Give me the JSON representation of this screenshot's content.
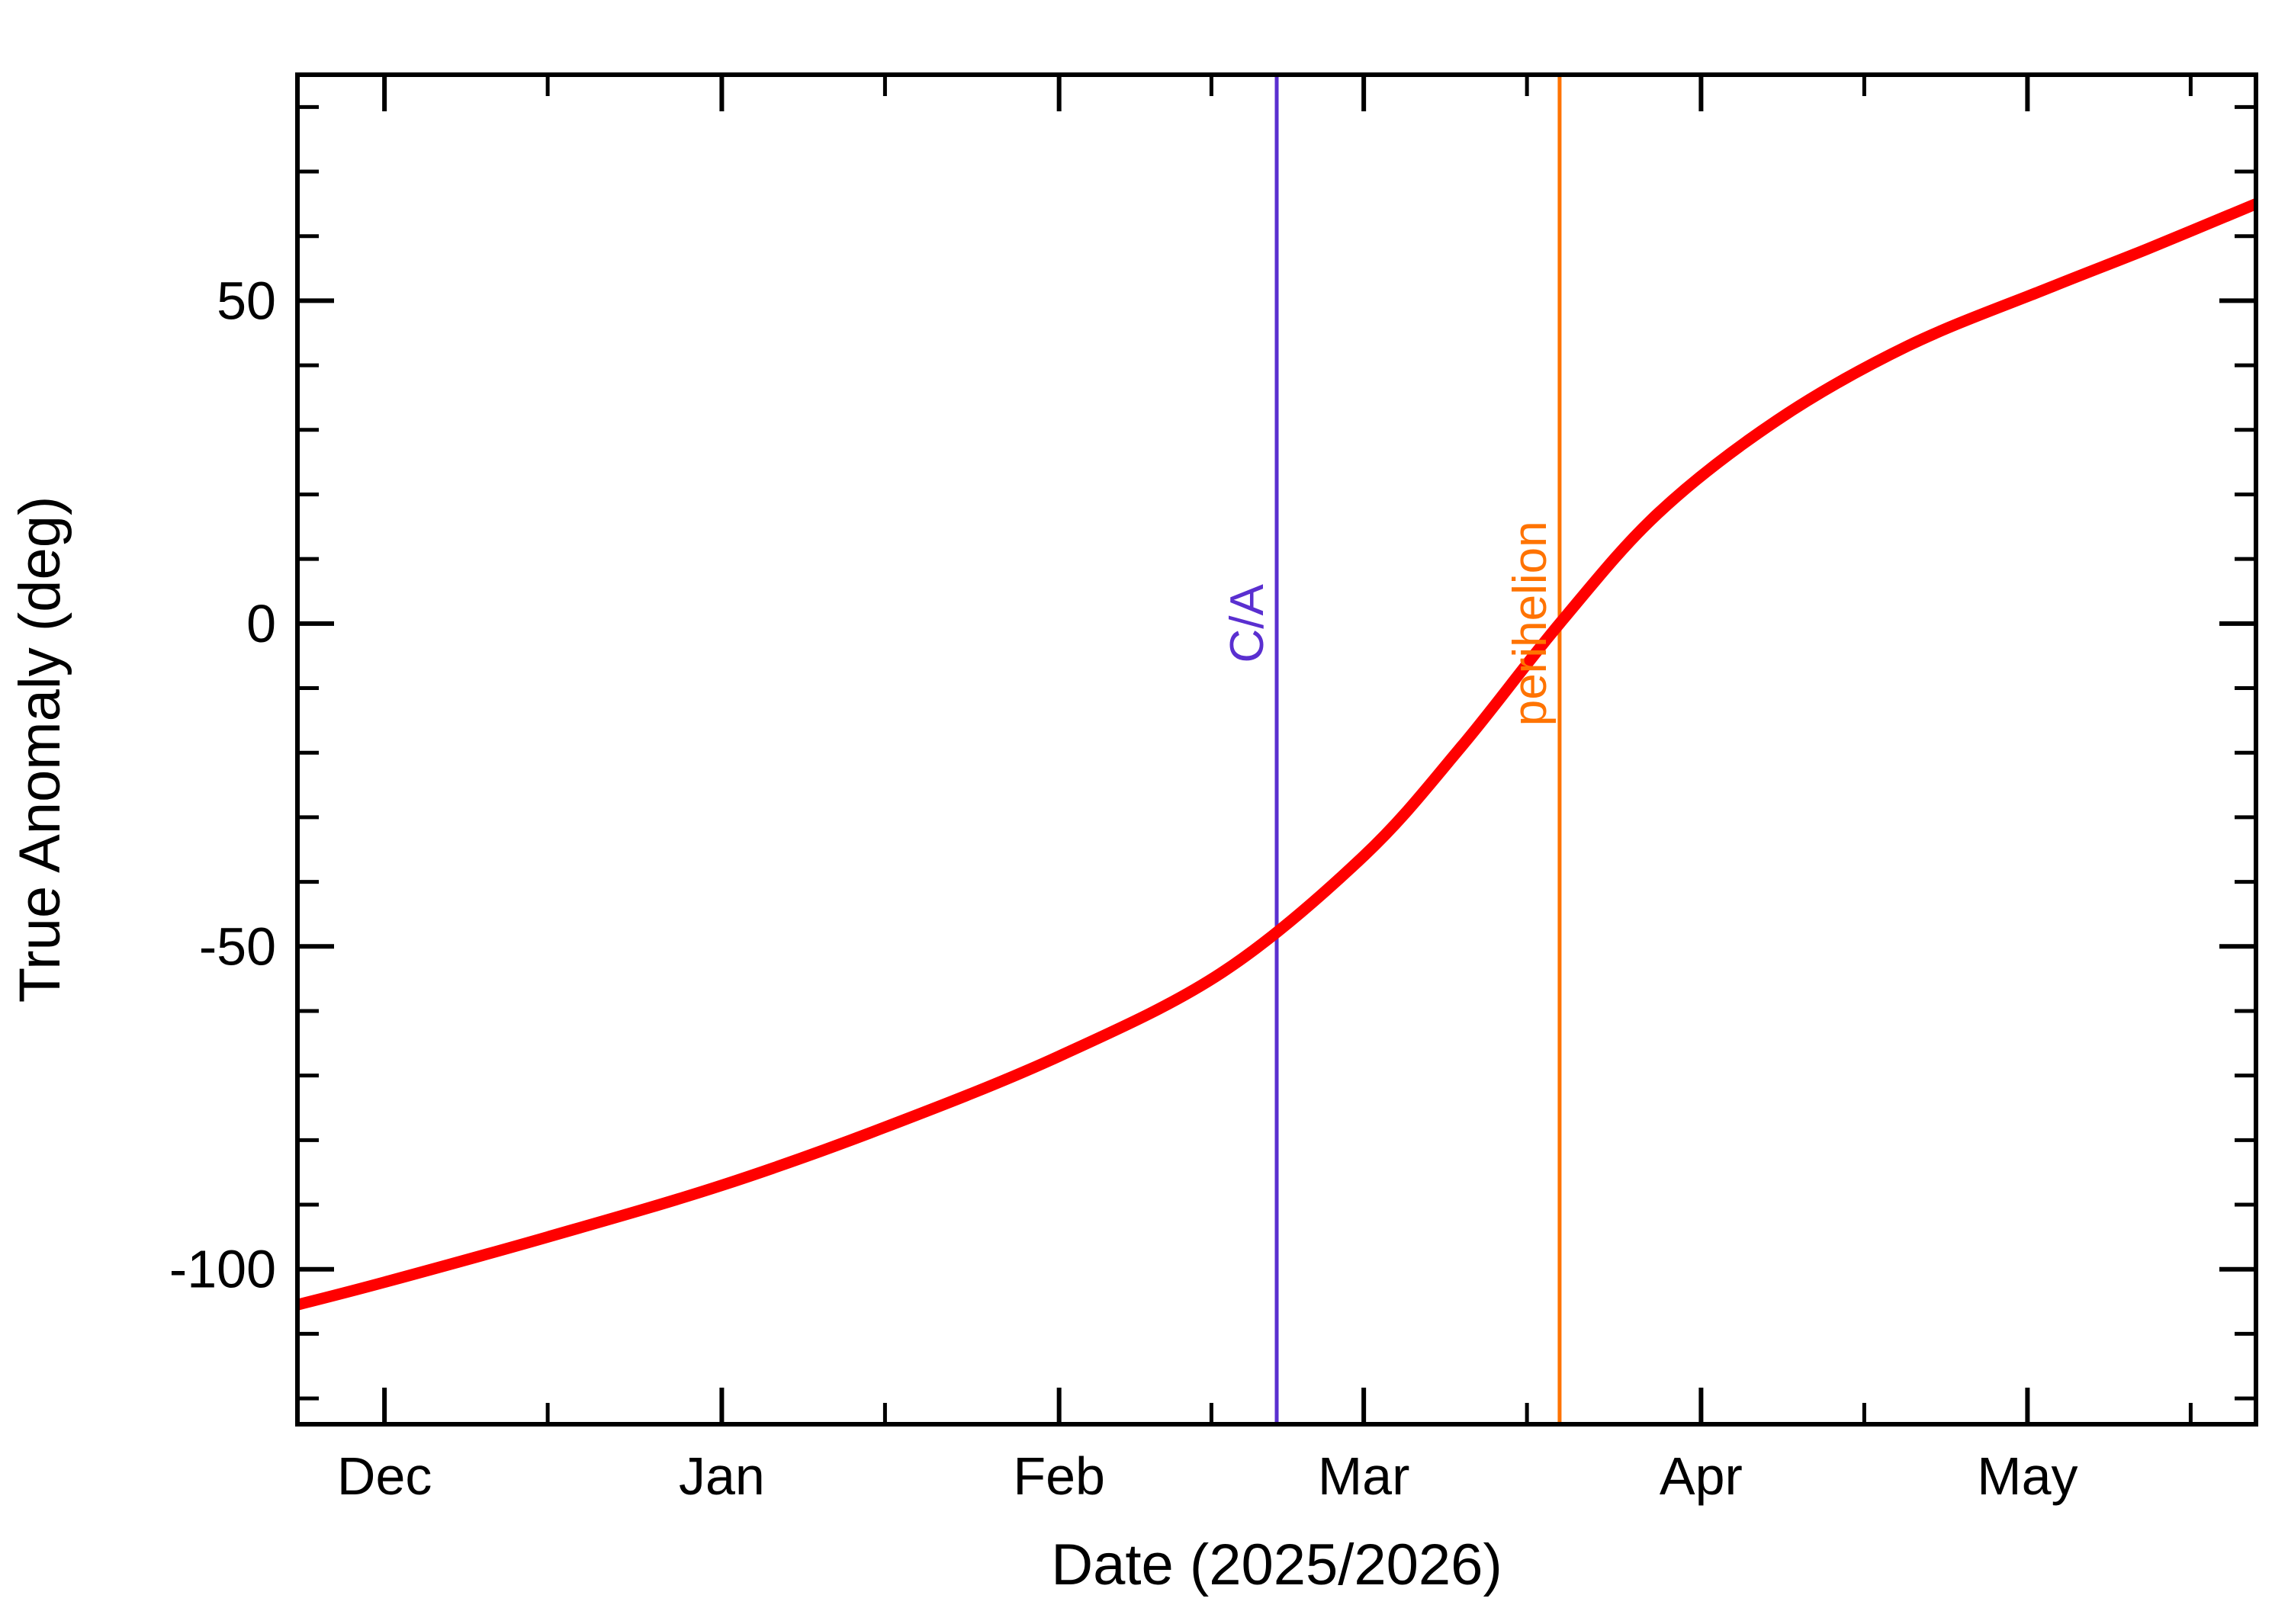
{
  "page": {
    "background": "#ffffff",
    "frame_color": "#000000"
  },
  "chart_data": {
    "type": "line",
    "title": "",
    "xlabel": "Date (2025/2026)",
    "ylabel": "True Anomaly (deg)",
    "x_axis": {
      "unit": "days since 2025-11-23",
      "range": [
        0,
        180
      ],
      "major_ticks": [
        {
          "day": 8,
          "label": "Dec"
        },
        {
          "day": 39,
          "label": "Jan"
        },
        {
          "day": 70,
          "label": "Feb"
        },
        {
          "day": 98,
          "label": "Mar"
        },
        {
          "day": 129,
          "label": "Apr"
        },
        {
          "day": 159,
          "label": "May"
        }
      ],
      "minor_tick_days": [
        23,
        54,
        84,
        113,
        144,
        174
      ]
    },
    "y_axis": {
      "range": [
        -124,
        85
      ],
      "major_ticks": [
        -100,
        -50,
        0,
        50
      ],
      "minor_ticks": [
        -120,
        -110,
        -90,
        -80,
        -70,
        -60,
        -40,
        -30,
        -20,
        -10,
        10,
        20,
        30,
        40,
        60,
        70,
        80
      ]
    },
    "grid": false,
    "legend": null,
    "series": [
      {
        "name": "true anomaly",
        "color": "#ff0000",
        "stroke_width": 15,
        "points": [
          [
            0,
            -105.5
          ],
          [
            8,
            -102
          ],
          [
            23,
            -95
          ],
          [
            39,
            -87
          ],
          [
            54,
            -78
          ],
          [
            70,
            -67
          ],
          [
            85,
            -54
          ],
          [
            98,
            -36
          ],
          [
            107,
            -19
          ],
          [
            116,
            0
          ],
          [
            125,
            17
          ],
          [
            136,
            31.5
          ],
          [
            148,
            43
          ],
          [
            161,
            52
          ],
          [
            170,
            58
          ],
          [
            180,
            65
          ]
        ]
      }
    ],
    "annotations": [
      {
        "id": "close-approach",
        "label": "C/A",
        "day": 90,
        "color": "#5a2fd0"
      },
      {
        "id": "perihelion",
        "label": "perihelion",
        "day": 116,
        "color": "#ff7300"
      }
    ]
  }
}
